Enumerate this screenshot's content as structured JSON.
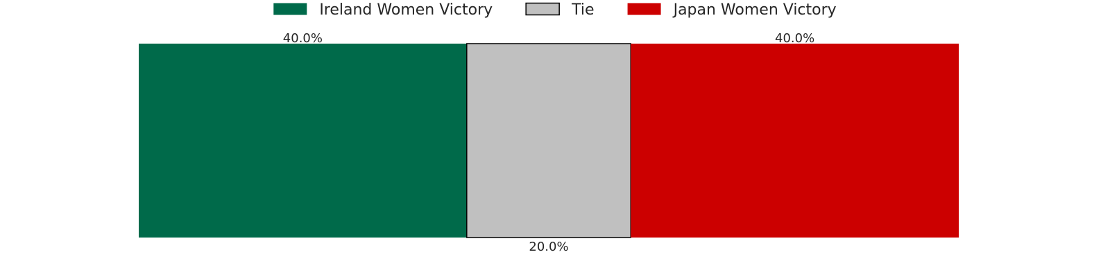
{
  "chart_data": {
    "type": "bar",
    "orientation": "horizontal-stacked",
    "categories": [
      ""
    ],
    "series": [
      {
        "name": "Ireland Women Victory",
        "values": [
          40.0
        ],
        "label": "40.0%",
        "color": "#006a4a",
        "label_position": "top"
      },
      {
        "name": "Tie",
        "values": [
          20.0
        ],
        "label": "20.0%",
        "color": "#c0c0c0",
        "label_position": "bottom",
        "outlined": true
      },
      {
        "name": "Japan Women Victory",
        "values": [
          40.0
        ],
        "label": "40.0%",
        "color": "#cc0000",
        "label_position": "top"
      }
    ],
    "xlim": [
      0,
      100
    ],
    "grid": false,
    "legend_position": "top-center"
  }
}
